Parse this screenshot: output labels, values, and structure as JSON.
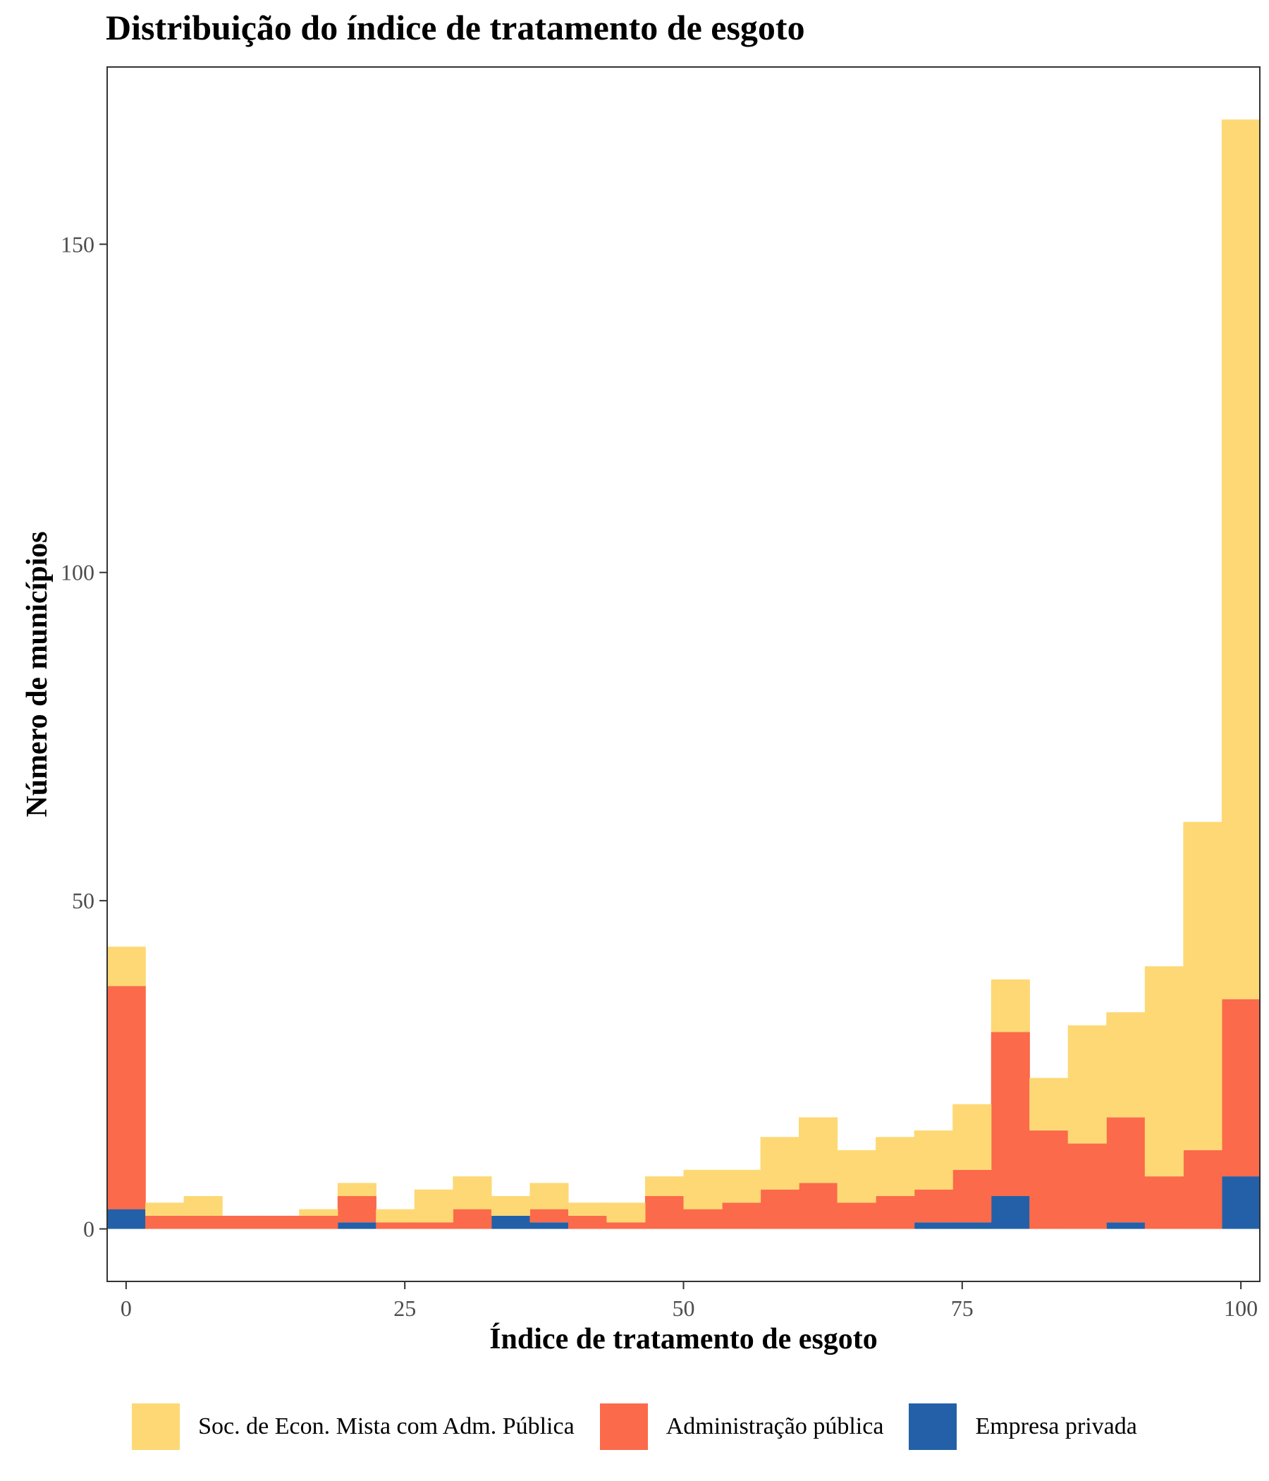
{
  "chart_data": {
    "type": "bar",
    "stacked": true,
    "title": "Distribuição do índice de tratamento de esgoto",
    "xlabel": "Índice de tratamento de esgoto",
    "ylabel": "Número de municípios",
    "x_ticks": [
      "0",
      "25",
      "50",
      "75",
      "100"
    ],
    "y_ticks": [
      "0",
      "50",
      "100",
      "150"
    ],
    "xlim": [
      -1.7,
      101.7
    ],
    "ylim": [
      -8,
      177
    ],
    "bin_width": 3.448,
    "bin_starts": [
      -1.72,
      1.72,
      5.17,
      8.62,
      12.07,
      15.52,
      18.97,
      22.41,
      25.86,
      29.31,
      32.76,
      36.21,
      39.66,
      43.1,
      46.55,
      50.0,
      53.45,
      56.9,
      60.34,
      63.79,
      67.24,
      70.69,
      74.14,
      77.59,
      81.03,
      84.48,
      87.93,
      91.38,
      94.83,
      98.28
    ],
    "series": [
      {
        "name": "Empresa privada",
        "color": "#2360a8",
        "values": [
          3,
          0,
          0,
          0,
          0,
          0,
          1,
          0,
          0,
          0,
          2,
          1,
          0,
          0,
          0,
          0,
          0,
          0,
          0,
          0,
          0,
          1,
          1,
          5,
          0,
          0,
          1,
          0,
          0,
          8
        ]
      },
      {
        "name": "Administração pública",
        "color": "#fb6a4a",
        "values": [
          34,
          2,
          2,
          2,
          2,
          2,
          4,
          1,
          1,
          3,
          0,
          2,
          2,
          1,
          5,
          3,
          4,
          6,
          7,
          4,
          5,
          5,
          8,
          25,
          15,
          13,
          16,
          8,
          12,
          27
        ]
      },
      {
        "name": "Soc. de Econ. Mista com Adm. Pública",
        "color": "#fdd874",
        "values": [
          6,
          2,
          3,
          0,
          0,
          1,
          2,
          2,
          5,
          5,
          3,
          4,
          2,
          3,
          3,
          6,
          5,
          8,
          10,
          8,
          9,
          9,
          10,
          8,
          8,
          18,
          16,
          32,
          50,
          134
        ]
      }
    ],
    "legend_order": [
      "Soc. de Econ. Mista com Adm. Pública",
      "Administração pública",
      "Empresa privada"
    ],
    "legend_position": "bottom",
    "grid": false
  }
}
